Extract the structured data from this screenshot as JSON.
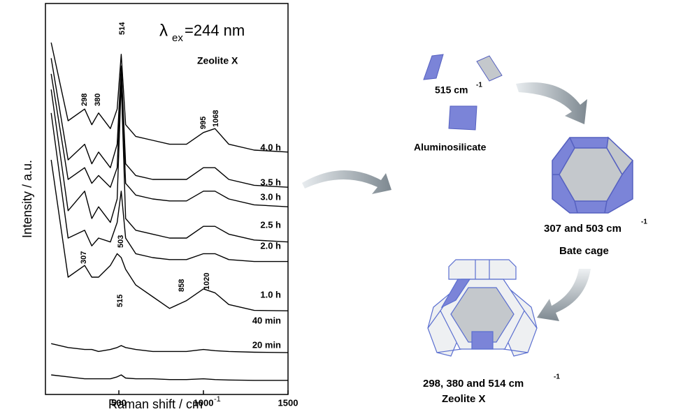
{
  "chart_data": {
    "type": "line",
    "xlabel": "Raman shift / cm",
    "xlabel_sup": "-1",
    "ylabel": "Intensity / a.u.",
    "excitation": {
      "symbol": "λ",
      "subscript": "ex",
      "value": "=244 nm"
    },
    "sample": "Zeolite X",
    "xlim": [
      66,
      1500
    ],
    "ylim": [
      0,
      100
    ],
    "xticks": [
      500,
      1000,
      1500
    ],
    "x": [
      100,
      200,
      298,
      340,
      380,
      450,
      490,
      514,
      540,
      600,
      700,
      800,
      900,
      1000,
      1068,
      1150,
      1300,
      1500
    ],
    "series": [
      {
        "name": "4.0 h",
        "color": "#000000",
        "values": [
          90,
          70,
          73,
          69,
          72,
          68,
          73,
          87,
          69,
          66,
          65,
          64,
          64,
          67,
          68,
          64,
          62.5,
          62
        ]
      },
      {
        "name": "3.5 h",
        "color": "#000000",
        "values": [
          86,
          60,
          64,
          59,
          62,
          58,
          64,
          84,
          59,
          56,
          55,
          55,
          55,
          58,
          58,
          55,
          53.5,
          53
        ]
      },
      {
        "name": "3.0 h",
        "color": "#000000",
        "values": [
          82,
          55,
          58,
          54,
          56,
          53,
          58,
          83,
          54,
          51,
          50,
          49.5,
          49.5,
          52,
          52,
          50,
          48.5,
          48
        ]
      },
      {
        "name": "2.5 h",
        "color": "#000000",
        "values": [
          78,
          47,
          52,
          45,
          48,
          44,
          50,
          80,
          45,
          42,
          41,
          40,
          40,
          43,
          43,
          41,
          39.5,
          39
        ]
      },
      {
        "name": "2.0 h",
        "color": "#000000",
        "values": [
          72,
          40,
          42,
          38,
          40,
          39,
          44,
          52,
          40,
          36,
          35,
          34.5,
          34.5,
          36,
          36,
          34.5,
          34,
          34
        ]
      },
      {
        "name": "1.0 h",
        "color": "#000000",
        "values": [
          60,
          30,
          33,
          30,
          30,
          33,
          36,
          35,
          32,
          28,
          25,
          22,
          24,
          27,
          26,
          23,
          21.5,
          21.4
        ]
      },
      {
        "name": "40 min",
        "color": "#000000",
        "values": [
          13,
          12,
          11.5,
          11.5,
          11,
          11.5,
          12,
          12.5,
          12,
          11.5,
          11,
          11,
          11,
          11.5,
          11.2,
          11,
          10.8,
          10.7
        ]
      },
      {
        "name": "20 min",
        "color": "#000000",
        "values": [
          5,
          4.5,
          4,
          4,
          4,
          4,
          4.5,
          5,
          4.2,
          4,
          4,
          3.8,
          3.8,
          4,
          3.8,
          3.7,
          3.6,
          3.6
        ]
      }
    ],
    "annotations": [
      "514",
      "298",
      "380",
      "995",
      "1068",
      "307",
      "503",
      "515",
      "858",
      "1020"
    ]
  },
  "diagram": {
    "aluminosilicate_freq": "515 cm",
    "aluminosilicate_sup": "-1",
    "aluminosilicate": "Aluminosilicate",
    "beta_freq": "307 and 503 cm",
    "beta_sup": "-1",
    "beta": "Bate cage",
    "zeolite_freq": "298, 380 and 514 cm",
    "zeolite_sup": "-1",
    "zeolite": "Zeolite X"
  }
}
